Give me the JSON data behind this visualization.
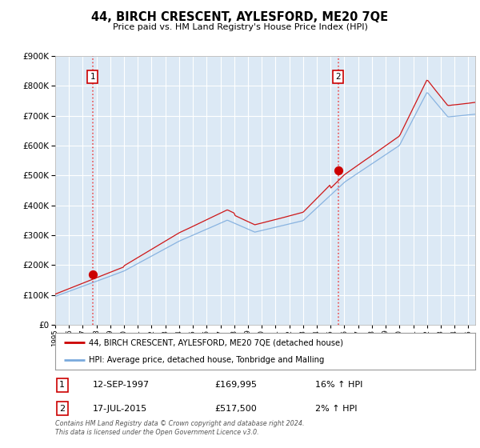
{
  "title": "44, BIRCH CRESCENT, AYLESFORD, ME20 7QE",
  "subtitle": "Price paid vs. HM Land Registry's House Price Index (HPI)",
  "legend_line1": "44, BIRCH CRESCENT, AYLESFORD, ME20 7QE (detached house)",
  "legend_line2": "HPI: Average price, detached house, Tonbridge and Malling",
  "annotation1_date": "12-SEP-1997",
  "annotation1_price": "£169,995",
  "annotation1_hpi": "16% ↑ HPI",
  "annotation1_year": 1997.71,
  "annotation1_value": 169995,
  "annotation2_date": "17-JUL-2015",
  "annotation2_price": "£517,500",
  "annotation2_hpi": "2% ↑ HPI",
  "annotation2_year": 2015.54,
  "annotation2_value": 517500,
  "footnote": "Contains HM Land Registry data © Crown copyright and database right 2024.\nThis data is licensed under the Open Government Licence v3.0.",
  "background_color": "#dce9f5",
  "red_line_color": "#cc0000",
  "blue_line_color": "#7aaadd",
  "grid_color": "#ffffff",
  "ylim_max": 900000,
  "xlim_start": 1995,
  "xlim_end": 2025.5
}
